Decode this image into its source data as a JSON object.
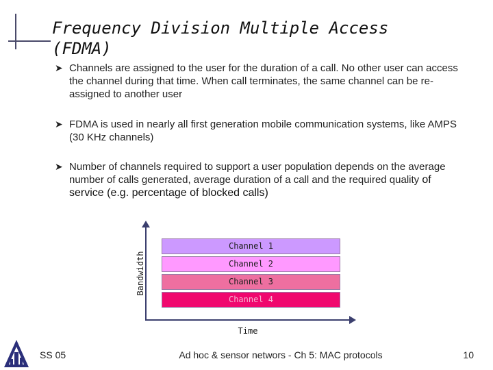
{
  "slide": {
    "title": "Frequency Division Multiple Access (FDMA)",
    "bullet_icon": "arrow-bullet",
    "bullets": [
      {
        "text": "Channels are assigned to the user for the duration of a call. No other user can access the channel during that time. When call terminates, the same channel can be re-assigned to another user"
      },
      {
        "text": "FDMA is used in nearly all first generation mobile communication systems, like AMPS (30 KHz channels)"
      },
      {
        "text": "Number of channels required to support a user population depends on the average number of calls generated, average duration of a call and the required quality ",
        "emphasis": "of service (e.g. percentage of blocked calls)"
      }
    ]
  },
  "diagram": {
    "y_axis_label": "Bandwidth",
    "x_axis_label": "Time",
    "channels": [
      {
        "label": "Channel 1",
        "color": "#cc99ff"
      },
      {
        "label": "Channel 2",
        "color": "#ff99ff"
      },
      {
        "label": "Channel 3",
        "color": "#ee6fa0"
      },
      {
        "label": "Channel 4",
        "color": "#f0086e"
      }
    ]
  },
  "footer": {
    "left": "SS 05",
    "center": "Ad hoc & sensor networs - Ch 5: MAC protocols",
    "page_number": "10",
    "logo_icon": "university-logo-icon"
  }
}
